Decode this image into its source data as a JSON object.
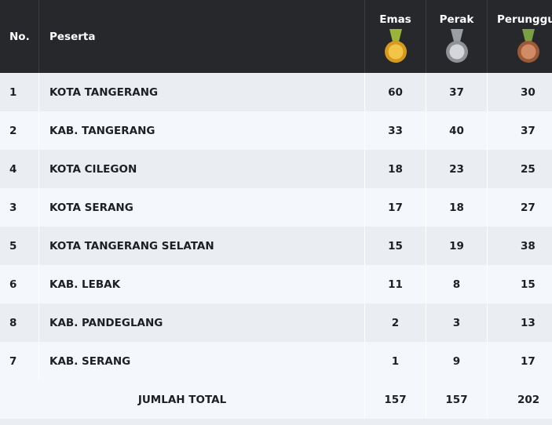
{
  "table": {
    "headers": [
      "No.",
      "Peserta",
      "Emas",
      "Perak",
      "Perunggu"
    ],
    "rows": [
      [
        1,
        "KOTA TANGERANG",
        60,
        37,
        30
      ],
      [
        2,
        "KAB. TANGERANG",
        33,
        40,
        37
      ],
      [
        4,
        "KOTA CILEGON",
        18,
        23,
        25
      ],
      [
        3,
        "KOTA SERANG",
        17,
        18,
        27
      ],
      [
        5,
        "KOTA TANGERANG SELATAN",
        15,
        19,
        38
      ],
      [
        6,
        "KAB. LEBAK",
        11,
        8,
        15
      ],
      [
        8,
        "KAB. PANDEGLANG",
        2,
        3,
        13
      ],
      [
        7,
        "KAB. SERANG",
        1,
        9,
        17
      ]
    ],
    "total": {
      "label": "JUMLAH TOTAL",
      "values": [
        157,
        157,
        202
      ]
    }
  }
}
